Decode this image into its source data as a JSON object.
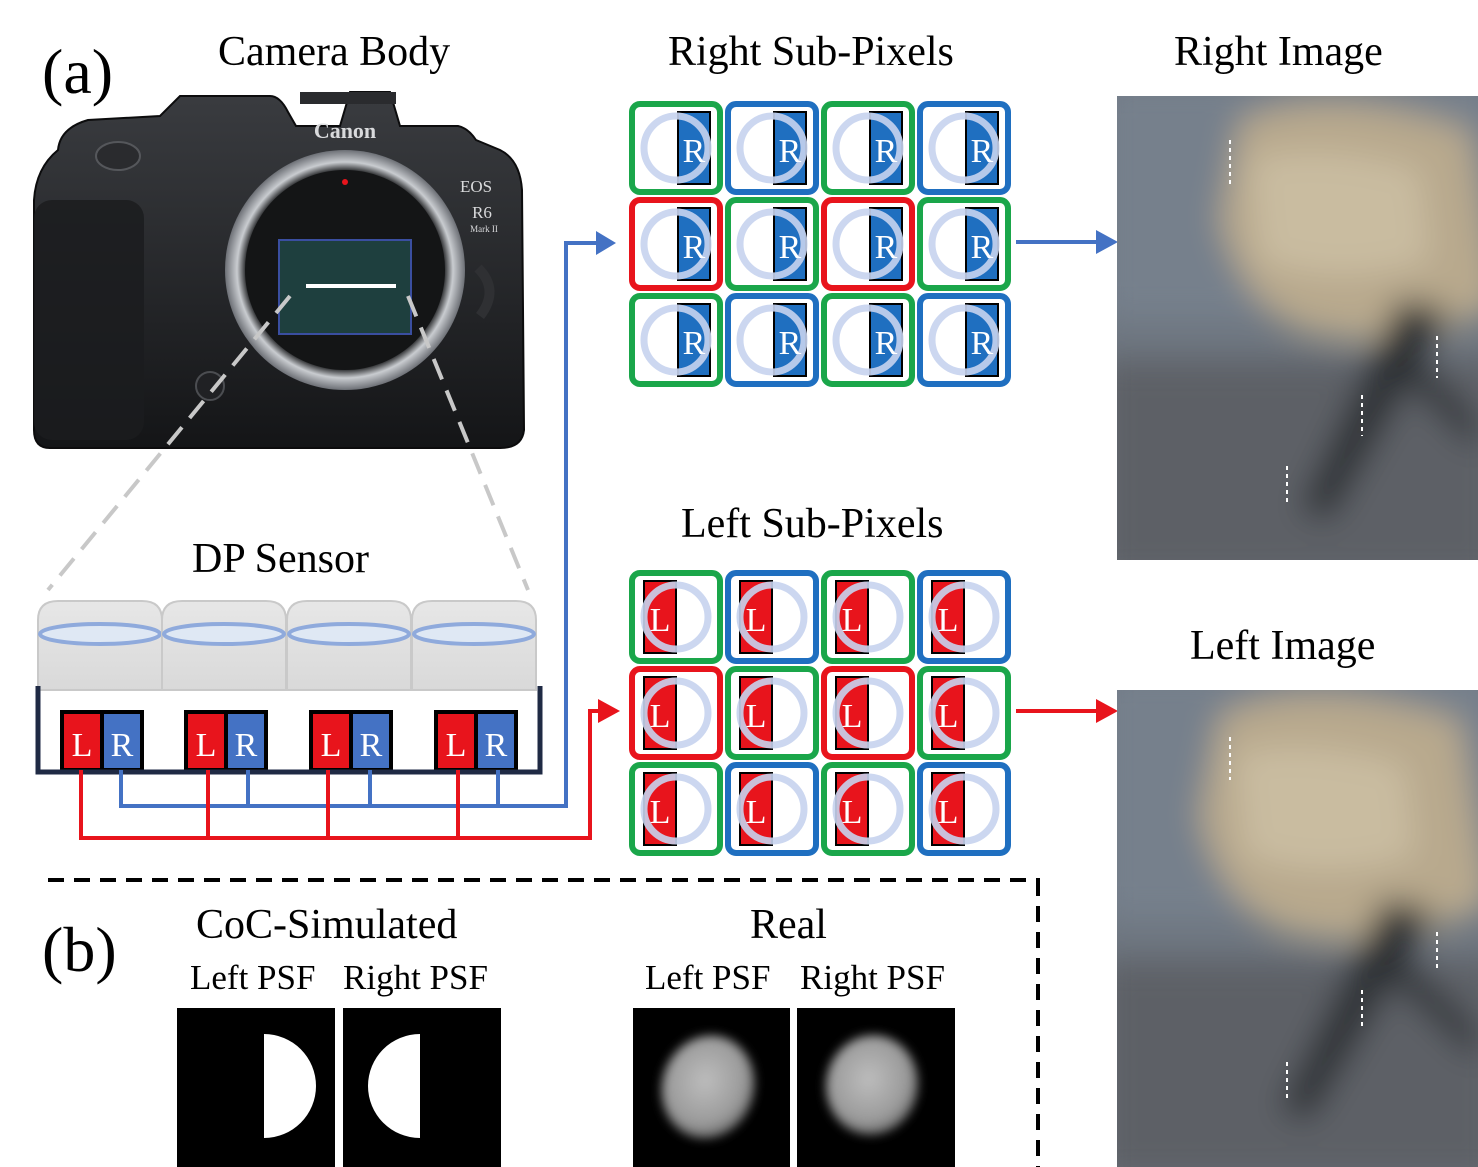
{
  "panel_a_tag": "(a)",
  "panel_b_tag": "(b)",
  "camera_title": "Camera Body",
  "camera_brand": "Canon",
  "camera_model_line1": "EOS",
  "camera_model_line2": "R6",
  "camera_model_line3": "Mark II",
  "sensor_title": "DP Sensor",
  "right_subpixels_title": "Right Sub-Pixels",
  "left_subpixels_title": "Left Sub-Pixels",
  "right_image_title": "Right Image",
  "left_image_title": "Left Image",
  "subpixel_right_letter": "R",
  "subpixel_left_letter": "L",
  "simulated_title": "CoC-Simulated",
  "real_title": "Real",
  "left_psf_label": "Left PSF",
  "right_psf_label": "Right PSF",
  "colors": {
    "red": "#e8141c",
    "green": "#1aa64a",
    "blue": "#1f6fc0",
    "right_arrow": "#4472c4",
    "left_arrow": "#e8141c",
    "sensor_blue": "#4472c4"
  },
  "bayer_pattern": [
    [
      "green",
      "blue",
      "green",
      "blue"
    ],
    [
      "red",
      "green",
      "red",
      "green"
    ],
    [
      "green",
      "blue",
      "green",
      "blue"
    ]
  ]
}
